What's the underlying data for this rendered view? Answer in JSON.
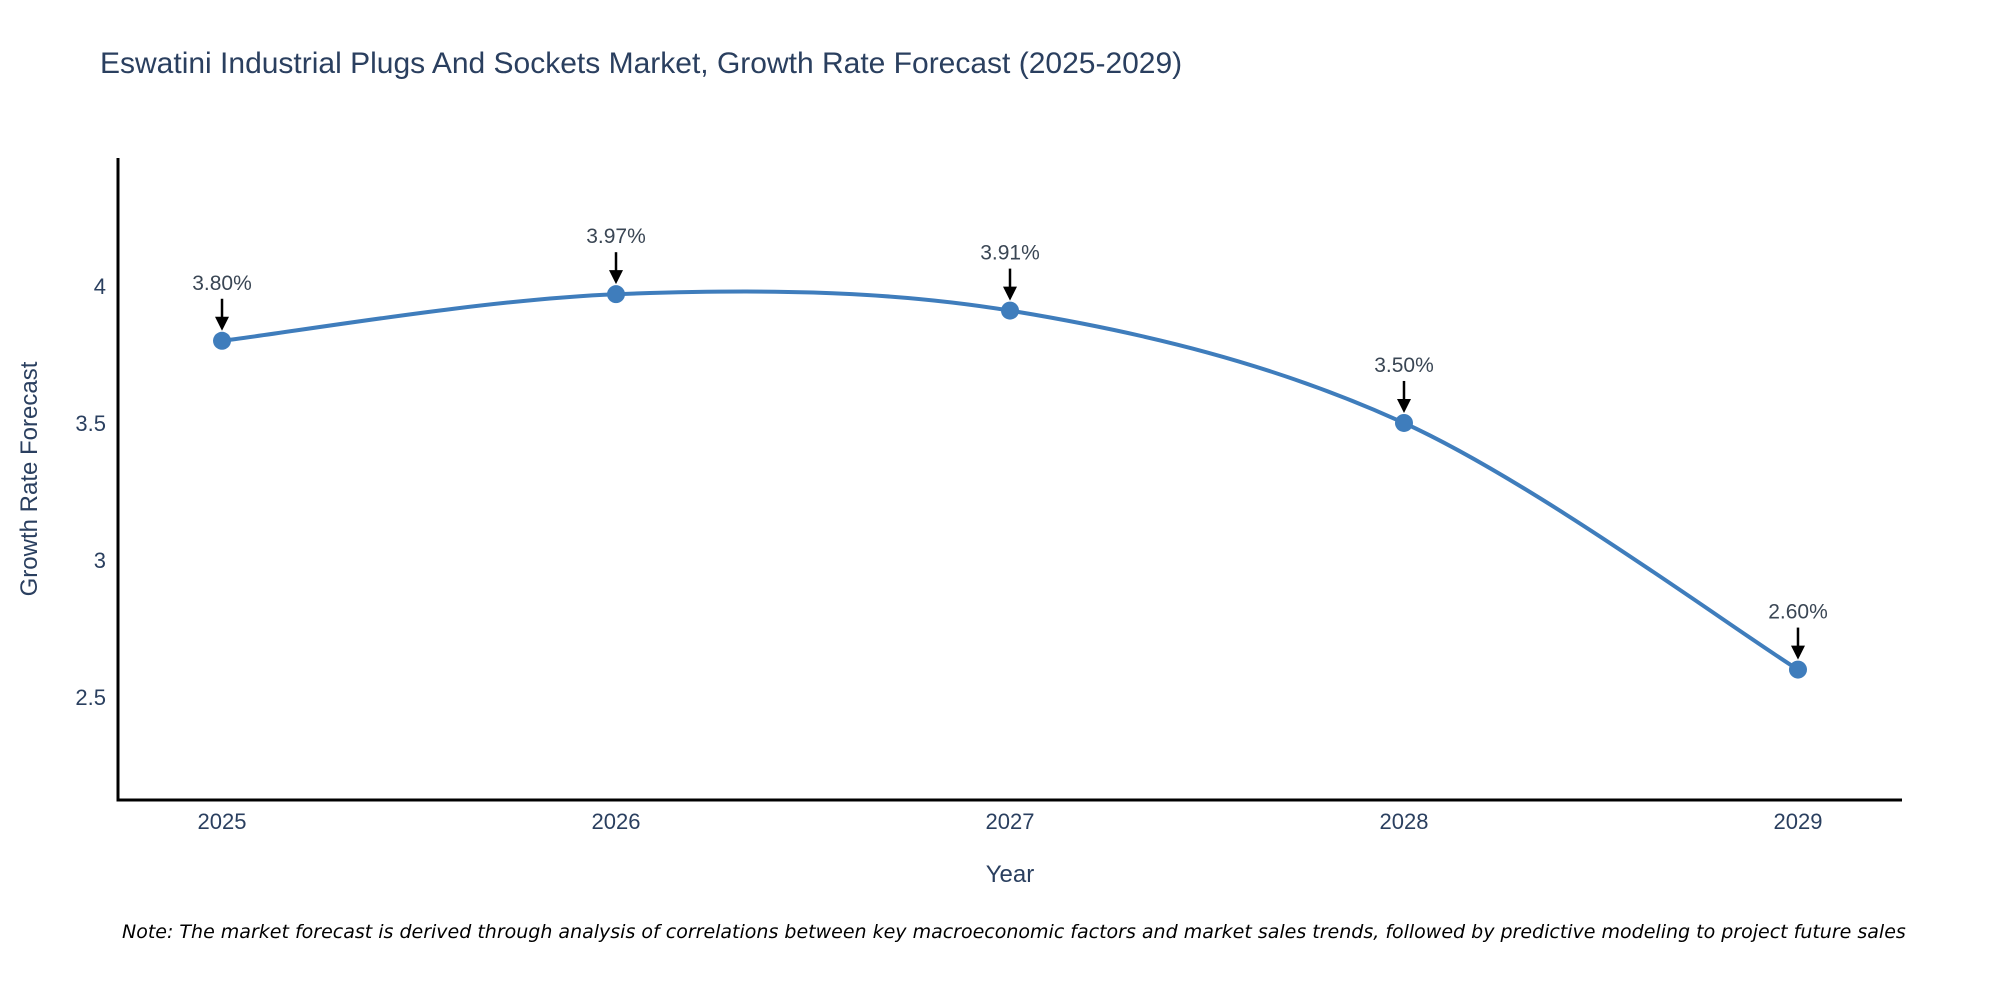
{
  "title": "Eswatini Industrial Plugs And Sockets Market, Growth Rate Forecast (2025-2029)",
  "note": "Note: The market forecast is derived through analysis of correlations between key macroeconomic factors and market sales trends, followed by predictive modeling to project future sales",
  "colors": {
    "line": "#3f7dbc",
    "marker": "#3f7dbc",
    "axis": "#000000",
    "chart_text": "#2a3f5f",
    "annotation_text": "#3a4654",
    "annotation_arrow": "#000000",
    "note_text": "#000000",
    "background": "#ffffff"
  },
  "chart_data": {
    "type": "line",
    "title": "Eswatini Industrial Plugs And Sockets Market, Growth Rate Forecast (2025-2029)",
    "categories": [
      "2025",
      "2026",
      "2027",
      "2028",
      "2029"
    ],
    "values": [
      3.8,
      3.97,
      3.91,
      3.5,
      2.6
    ],
    "point_labels": [
      "3.80%",
      "3.97%",
      "3.91%",
      "3.50%",
      "2.60%"
    ],
    "series_name": "Growth Rate Forecast",
    "xlabel": "Year",
    "ylabel": "Growth Rate Forecast",
    "yticks": [
      2.5,
      3,
      3.5,
      4
    ],
    "ytick_labels": [
      "2.5",
      "3",
      "3.5",
      "4"
    ],
    "ylim": [
      2.124,
      4.467
    ],
    "grid": false,
    "legend_position": "none",
    "line_shape": "spline",
    "marker_size": 9,
    "annotations": "value labels with down arrows above each point"
  }
}
